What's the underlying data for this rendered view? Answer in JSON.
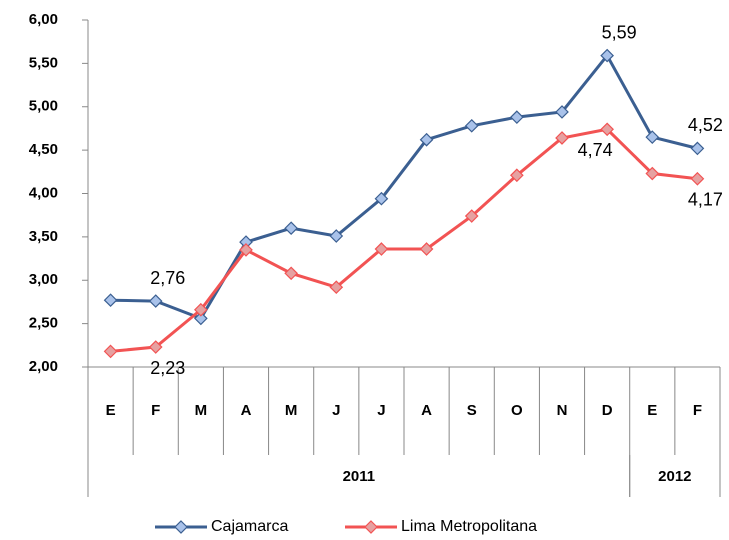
{
  "chart_data": {
    "type": "line",
    "categories": [
      "E",
      "F",
      "M",
      "A",
      "M",
      "J",
      "J",
      "A",
      "S",
      "O",
      "N",
      "D",
      "E",
      "F"
    ],
    "groups": [
      {
        "name": "2011",
        "count": 12
      },
      {
        "name": "2012",
        "count": 2
      }
    ],
    "series": [
      {
        "name": "Cajamarca",
        "color": "#3b5f91",
        "marker_color": "#a9c2ea",
        "values": [
          2.77,
          2.76,
          2.56,
          3.44,
          3.6,
          3.51,
          3.94,
          4.62,
          4.78,
          4.88,
          4.94,
          5.59,
          4.65,
          4.52
        ],
        "value_labels": [
          null,
          "2,76",
          null,
          null,
          null,
          null,
          null,
          null,
          null,
          null,
          null,
          "5,59",
          null,
          "4,52"
        ]
      },
      {
        "name": "Lima Metropolitana",
        "color": "#f25353",
        "marker_color": "#e6a1a1",
        "values": [
          2.18,
          2.23,
          2.66,
          3.35,
          3.08,
          2.92,
          3.36,
          3.36,
          3.74,
          4.21,
          4.64,
          4.74,
          4.23,
          4.17
        ],
        "value_labels": [
          null,
          "2,23",
          null,
          null,
          null,
          null,
          null,
          null,
          null,
          null,
          null,
          "4,74",
          null,
          "4,17"
        ]
      }
    ],
    "ylim": [
      2,
      6
    ],
    "yticks": [
      {
        "value": 2,
        "label": "2,00"
      },
      {
        "value": 2.5,
        "label": "2,50"
      },
      {
        "value": 3,
        "label": "3,00"
      },
      {
        "value": 3.5,
        "label": "3,50"
      },
      {
        "value": 4,
        "label": "4,00"
      },
      {
        "value": 4.5,
        "label": "4,50"
      },
      {
        "value": 5,
        "label": "5,00"
      },
      {
        "value": 5.5,
        "label": "5,50"
      },
      {
        "value": 6,
        "label": "6,00"
      }
    ],
    "legend": "bottom"
  }
}
